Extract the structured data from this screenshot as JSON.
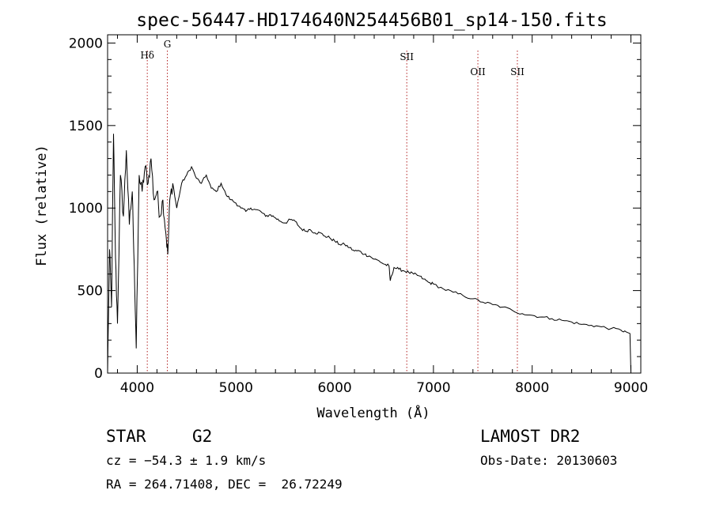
{
  "chart_data": {
    "type": "line",
    "title": "spec-56447-HD174640N254456B01_sp14-150.fits",
    "xlabel": "Wavelength (Å)",
    "ylabel": "Flux (relative)",
    "xlim": [
      3700,
      9100
    ],
    "ylim": [
      0,
      2050
    ],
    "x_ticks": [
      4000,
      5000,
      6000,
      7000,
      8000,
      9000
    ],
    "y_ticks": [
      0,
      500,
      1000,
      1500,
      2000
    ],
    "grid": false,
    "series": [
      {
        "color": "#000000",
        "x": [
          3700,
          3720,
          3740,
          3760,
          3780,
          3800,
          3830,
          3860,
          3890,
          3920,
          3950,
          3970,
          3990,
          4020,
          4050,
          4080,
          4110,
          4140,
          4170,
          4200,
          4230,
          4260,
          4290,
          4310,
          4330,
          4360,
          4400,
          4450,
          4500,
          4550,
          4600,
          4650,
          4700,
          4750,
          4800,
          4850,
          4900,
          4950,
          5000,
          5050,
          5100,
          5150,
          5200,
          5250,
          5300,
          5350,
          5400,
          5450,
          5500,
          5550,
          5600,
          5650,
          5700,
          5750,
          5800,
          5850,
          5900,
          5950,
          6000,
          6050,
          6100,
          6150,
          6200,
          6250,
          6300,
          6350,
          6400,
          6450,
          6500,
          6550,
          6563,
          6600,
          6650,
          6700,
          6750,
          6800,
          6850,
          6900,
          6950,
          7000,
          7100,
          7200,
          7300,
          7400,
          7500,
          7600,
          7700,
          7800,
          7900,
          8000,
          8100,
          8200,
          8300,
          8400,
          8500,
          8600,
          8700,
          8800,
          8900,
          8950,
          8990,
          9000
        ],
        "y": [
          0,
          750,
          400,
          1450,
          700,
          300,
          1200,
          950,
          1350,
          900,
          1100,
          650,
          150,
          1200,
          1100,
          1250,
          1150,
          1300,
          1050,
          1100,
          950,
          1050,
          850,
          720,
          1050,
          1150,
          1000,
          1150,
          1200,
          1250,
          1180,
          1150,
          1200,
          1120,
          1100,
          1150,
          1080,
          1050,
          1030,
          1000,
          980,
          1000,
          990,
          980,
          950,
          960,
          940,
          920,
          910,
          930,
          920,
          880,
          860,
          870,
          850,
          850,
          830,
          820,
          800,
          780,
          780,
          760,
          740,
          740,
          720,
          710,
          690,
          680,
          660,
          650,
          560,
          640,
          630,
          620,
          610,
          600,
          590,
          570,
          550,
          540,
          510,
          490,
          470,
          450,
          430,
          415,
          400,
          380,
          360,
          350,
          340,
          330,
          320,
          310,
          295,
          290,
          280,
          270,
          260,
          250,
          240,
          0
        ]
      }
    ],
    "markers": [
      {
        "label": "Hδ",
        "x": 4102
      },
      {
        "label": "G",
        "x": 4305
      },
      {
        "label": "SII",
        "x": 6730
      },
      {
        "label": "OII",
        "x": 7450
      },
      {
        "label": "SII",
        "x": 7850
      }
    ]
  },
  "info": {
    "class": "STAR",
    "subclass": "G2",
    "survey": "LAMOST DR2",
    "cz": "cz = −54.3 ± 1.9 km/s",
    "obs_date": "Obs-Date: 20130603",
    "radec": "RA = 264.71408, DEC =  26.72249"
  }
}
